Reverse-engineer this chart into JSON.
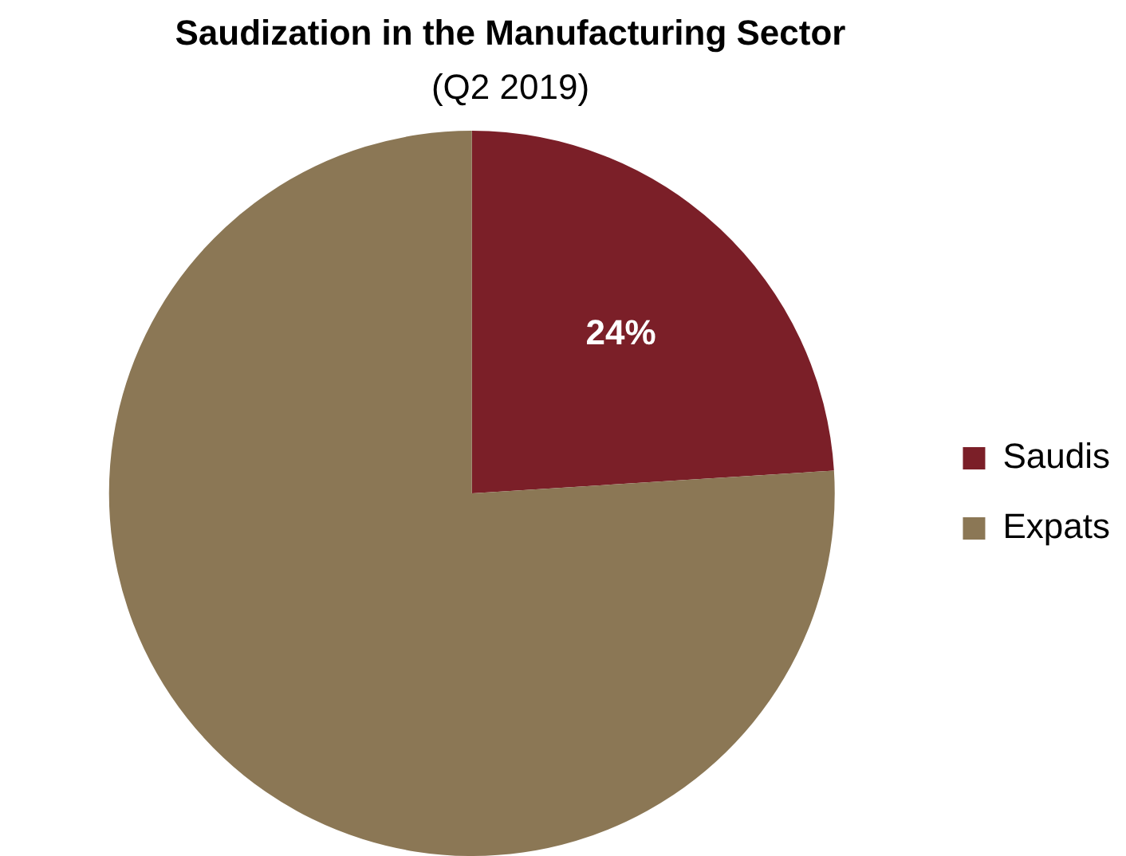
{
  "chart_data": {
    "type": "pie",
    "title": "Saudization in the Manufacturing Sector",
    "subtitle": "(Q2 2019)",
    "categories": [
      "Saudis",
      "Expats"
    ],
    "values": [
      24,
      76
    ],
    "colors": [
      "#7b1f28",
      "#8b7755"
    ],
    "value_labels": [
      "24%",
      null
    ],
    "legend": "right"
  }
}
